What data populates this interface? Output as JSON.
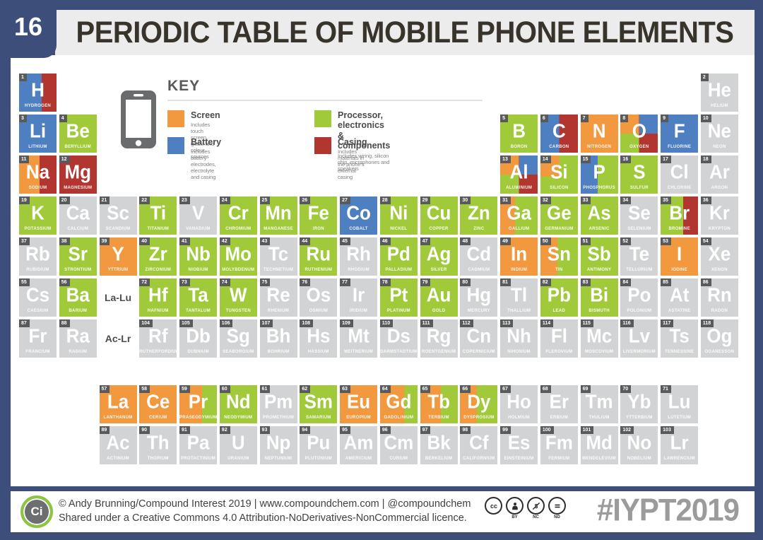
{
  "page": {
    "number": "16",
    "title": "PERIODIC TABLE OF MOBILE PHONE ELEMENTS"
  },
  "key": {
    "heading": "KEY",
    "items": [
      {
        "label": "Screen",
        "caption": "Includes touch screen, glass, and colour sources",
        "category": "screen"
      },
      {
        "label": "Battery",
        "caption": "Includes battery electrodes, electrolyte and casing",
        "category": "battery"
      },
      {
        "label": "Processor, electronics & components",
        "caption": "Includes wiring, silicon chip, microphones and speakers",
        "category": "processor"
      },
      {
        "label": "Casing",
        "caption": "Includes materials in the phone's external casing",
        "category": "casing"
      }
    ]
  },
  "palette": {
    "screen": "#F2983E",
    "battery": "#4D7FC1",
    "processor": "#A1CA3A",
    "casing": "#B2362F",
    "unused": "#D2D3D4",
    "frame": "#3E4E7B",
    "number_box": "#595A5C",
    "title_text": "#38342B"
  },
  "placeholders": [
    {
      "label": "La-Lu",
      "row": 6,
      "col": 3
    },
    {
      "label": "Ac-Lr",
      "row": 7,
      "col": 3
    }
  ],
  "elements": [
    [
      1,
      "H",
      "HYDROGEN",
      1,
      1,
      "split:battery,casing,60"
    ],
    [
      2,
      "He",
      "HELIUM",
      1,
      18,
      "unused"
    ],
    [
      3,
      "Li",
      "LITHIUM",
      2,
      1,
      "battery"
    ],
    [
      4,
      "Be",
      "BERYLLIUM",
      2,
      2,
      "processor"
    ],
    [
      5,
      "B",
      "BORON",
      2,
      13,
      "processor"
    ],
    [
      6,
      "C",
      "CARBON",
      2,
      14,
      "split:battery,casing,50"
    ],
    [
      7,
      "N",
      "NITROGEN",
      2,
      15,
      "screen"
    ],
    [
      8,
      "O",
      "OXYGEN",
      2,
      16,
      "quad"
    ],
    [
      9,
      "F",
      "FLUORINE",
      2,
      17,
      "battery"
    ],
    [
      10,
      "Ne",
      "NEON",
      2,
      18,
      "unused"
    ],
    [
      11,
      "Na",
      "SODIUM",
      3,
      1,
      "split:screen,casing,55"
    ],
    [
      12,
      "Mg",
      "MAGNESIUM",
      3,
      2,
      "casing"
    ],
    [
      13,
      "Al",
      "ALUMINIUM",
      3,
      13,
      "quad"
    ],
    [
      14,
      "Si",
      "SILICON",
      3,
      14,
      "tl:screen,processor"
    ],
    [
      15,
      "P",
      "PHOSPHORUS",
      3,
      15,
      "split:battery,processor,45"
    ],
    [
      16,
      "S",
      "SULFUR",
      3,
      16,
      "processor"
    ],
    [
      17,
      "Cl",
      "CHLORINE",
      3,
      17,
      "unused"
    ],
    [
      18,
      "Ar",
      "ARGON",
      3,
      18,
      "unused"
    ],
    [
      19,
      "K",
      "POTASSIUM",
      4,
      1,
      "processor"
    ],
    [
      20,
      "Ca",
      "CALCIUM",
      4,
      2,
      "unused"
    ],
    [
      21,
      "Sc",
      "SCANDIUM",
      4,
      3,
      "unused"
    ],
    [
      22,
      "Ti",
      "TITANIUM",
      4,
      4,
      "processor"
    ],
    [
      23,
      "V",
      "VANADIUM",
      4,
      5,
      "unused"
    ],
    [
      24,
      "Cr",
      "CHROMIUM",
      4,
      6,
      "processor"
    ],
    [
      25,
      "Mn",
      "MANGANESE",
      4,
      7,
      "processor"
    ],
    [
      26,
      "Fe",
      "IRON",
      4,
      8,
      "processor"
    ],
    [
      27,
      "Co",
      "COBALT",
      4,
      9,
      "battery"
    ],
    [
      28,
      "Ni",
      "NICKEL",
      4,
      10,
      "processor"
    ],
    [
      29,
      "Cu",
      "COPPER",
      4,
      11,
      "processor"
    ],
    [
      30,
      "Zn",
      "ZINC",
      4,
      12,
      "processor"
    ],
    [
      31,
      "Ga",
      "GALLIUM",
      4,
      13,
      "split:screen,processor,40"
    ],
    [
      32,
      "Ge",
      "GERMANIUM",
      4,
      14,
      "processor"
    ],
    [
      33,
      "As",
      "ARSENIC",
      4,
      15,
      "processor"
    ],
    [
      34,
      "Se",
      "SELENIUM",
      4,
      16,
      "unused"
    ],
    [
      35,
      "Br",
      "BROMINE",
      4,
      17,
      "split:processor,casing,60"
    ],
    [
      36,
      "Kr",
      "KRYPTON",
      4,
      18,
      "unused"
    ],
    [
      37,
      "Rb",
      "RUBIDIUM",
      5,
      1,
      "unused"
    ],
    [
      38,
      "Sr",
      "STRONTIUM",
      5,
      2,
      "processor"
    ],
    [
      39,
      "Y",
      "YTTRIUM",
      5,
      3,
      "screen"
    ],
    [
      40,
      "Zr",
      "ZIRCONIUM",
      5,
      4,
      "processor"
    ],
    [
      41,
      "Nb",
      "NIOBIUM",
      5,
      5,
      "processor"
    ],
    [
      42,
      "Mo",
      "MOLYBDENUM",
      5,
      6,
      "processor"
    ],
    [
      43,
      "Tc",
      "TECHNETIUM",
      5,
      7,
      "unused"
    ],
    [
      44,
      "Ru",
      "RUTHENIUM",
      5,
      8,
      "processor"
    ],
    [
      45,
      "Rh",
      "RHODIUM",
      5,
      9,
      "unused"
    ],
    [
      46,
      "Pd",
      "PALLADIUM",
      5,
      10,
      "processor"
    ],
    [
      47,
      "Ag",
      "SILVER",
      5,
      11,
      "processor"
    ],
    [
      48,
      "Cd",
      "CADMIUM",
      5,
      12,
      "unused"
    ],
    [
      49,
      "In",
      "INDIUM",
      5,
      13,
      "screen"
    ],
    [
      50,
      "Sn",
      "TIN",
      5,
      14,
      "split:screen,processor,45"
    ],
    [
      51,
      "Sb",
      "ANTIMONY",
      5,
      15,
      "processor"
    ],
    [
      52,
      "Te",
      "TELLURIUM",
      5,
      16,
      "unused"
    ],
    [
      53,
      "I",
      "IODINE",
      5,
      17,
      "screen"
    ],
    [
      54,
      "Xe",
      "XENON",
      5,
      18,
      "unused"
    ],
    [
      55,
      "Cs",
      "CAESIUM",
      6,
      1,
      "unused"
    ],
    [
      56,
      "Ba",
      "BARIUM",
      6,
      2,
      "processor"
    ],
    [
      72,
      "Hf",
      "HAFNIUM",
      6,
      4,
      "processor"
    ],
    [
      73,
      "Ta",
      "TANTALUM",
      6,
      5,
      "processor"
    ],
    [
      74,
      "W",
      "TUNGSTEN",
      6,
      6,
      "processor"
    ],
    [
      75,
      "Re",
      "RHENIUM",
      6,
      7,
      "unused"
    ],
    [
      76,
      "Os",
      "OSMIUM",
      6,
      8,
      "unused"
    ],
    [
      77,
      "Ir",
      "IRIDIUM",
      6,
      9,
      "unused"
    ],
    [
      78,
      "Pt",
      "PLATINUM",
      6,
      10,
      "processor"
    ],
    [
      79,
      "Au",
      "GOLD",
      6,
      11,
      "processor"
    ],
    [
      80,
      "Hg",
      "MERCURY",
      6,
      12,
      "unused"
    ],
    [
      81,
      "Tl",
      "THALLIUM",
      6,
      13,
      "unused"
    ],
    [
      82,
      "Pb",
      "LEAD",
      6,
      14,
      "processor"
    ],
    [
      83,
      "Bi",
      "BISMUTH",
      6,
      15,
      "processor"
    ],
    [
      84,
      "Po",
      "POLONIUM",
      6,
      16,
      "unused"
    ],
    [
      85,
      "At",
      "ASTATINE",
      6,
      17,
      "unused"
    ],
    [
      86,
      "Rn",
      "RADON",
      6,
      18,
      "unused"
    ],
    [
      87,
      "Fr",
      "FRANCIUM",
      7,
      1,
      "unused"
    ],
    [
      88,
      "Ra",
      "RADIUM",
      7,
      2,
      "unused"
    ],
    [
      104,
      "Rf",
      "RUTHERFORDIUM",
      7,
      4,
      "unused"
    ],
    [
      105,
      "Db",
      "DUBNIUM",
      7,
      5,
      "unused"
    ],
    [
      106,
      "Sg",
      "SEABORGIUM",
      7,
      6,
      "unused"
    ],
    [
      107,
      "Bh",
      "BOHRIUM",
      7,
      7,
      "unused"
    ],
    [
      108,
      "Hs",
      "HASSIUM",
      7,
      8,
      "unused"
    ],
    [
      109,
      "Mt",
      "MEITNERIUM",
      7,
      9,
      "unused"
    ],
    [
      110,
      "Ds",
      "DARMSTADTIUM",
      7,
      10,
      "unused"
    ],
    [
      111,
      "Rg",
      "ROENTGENIUM",
      7,
      11,
      "unused"
    ],
    [
      112,
      "Cn",
      "COPERNICIUM",
      7,
      12,
      "unused"
    ],
    [
      113,
      "Nh",
      "NIHONIUM",
      7,
      13,
      "unused"
    ],
    [
      114,
      "Fl",
      "FLEROVIUM",
      7,
      14,
      "unused"
    ],
    [
      115,
      "Mc",
      "MOSCOVIUM",
      7,
      15,
      "unused"
    ],
    [
      116,
      "Lv",
      "LIVERMORIUM",
      7,
      16,
      "unused"
    ],
    [
      117,
      "Ts",
      "TENNESSINE",
      7,
      17,
      "unused"
    ],
    [
      118,
      "Og",
      "OGANESSON",
      7,
      18,
      "unused"
    ],
    [
      57,
      "La",
      "LANTHANUM",
      8,
      3,
      "screen"
    ],
    [
      58,
      "Ce",
      "CERIUM",
      8,
      4,
      "screen"
    ],
    [
      59,
      "Pr",
      "PRASEODYMIUM",
      8,
      5,
      "split:screen,processor,60"
    ],
    [
      60,
      "Nd",
      "NEODYMIUM",
      8,
      6,
      "processor"
    ],
    [
      61,
      "Pm",
      "PROMETHIUM",
      8,
      7,
      "unused"
    ],
    [
      62,
      "Sm",
      "SAMARIUM",
      8,
      8,
      "processor"
    ],
    [
      63,
      "Eu",
      "EUROPIUM",
      8,
      9,
      "screen"
    ],
    [
      64,
      "Gd",
      "GADOLINIUM",
      8,
      10,
      "split:screen,processor,65"
    ],
    [
      65,
      "Tb",
      "TERBIUM",
      8,
      11,
      "split:screen,processor,55"
    ],
    [
      66,
      "Dy",
      "DYSPROSIUM",
      8,
      12,
      "split:screen,processor,45"
    ],
    [
      67,
      "Ho",
      "HOLMIUM",
      8,
      13,
      "unused"
    ],
    [
      68,
      "Er",
      "ERBIUM",
      8,
      14,
      "unused"
    ],
    [
      69,
      "Tm",
      "THULIUM",
      8,
      15,
      "unused"
    ],
    [
      70,
      "Yb",
      "YTTERBIUM",
      8,
      16,
      "unused"
    ],
    [
      71,
      "Lu",
      "LUTETIUM",
      8,
      17,
      "unused"
    ],
    [
      89,
      "Ac",
      "ACTINIUM",
      9,
      3,
      "unused"
    ],
    [
      90,
      "Th",
      "THORIUM",
      9,
      4,
      "unused"
    ],
    [
      91,
      "Pa",
      "PROTACTINIUM",
      9,
      5,
      "unused"
    ],
    [
      92,
      "U",
      "URANIUM",
      9,
      6,
      "unused"
    ],
    [
      93,
      "Np",
      "NEPTUNIUM",
      9,
      7,
      "unused"
    ],
    [
      94,
      "Pu",
      "PLUTONIUM",
      9,
      8,
      "unused"
    ],
    [
      95,
      "Am",
      "AMERICIUM",
      9,
      9,
      "unused"
    ],
    [
      96,
      "Cm",
      "CURIUM",
      9,
      10,
      "unused"
    ],
    [
      97,
      "Bk",
      "BERKELIUM",
      9,
      11,
      "unused"
    ],
    [
      98,
      "Cf",
      "CALIFORNIUM",
      9,
      12,
      "unused"
    ],
    [
      99,
      "Es",
      "EINSTEINIUM",
      9,
      13,
      "unused"
    ],
    [
      100,
      "Fm",
      "FERMIUM",
      9,
      14,
      "unused"
    ],
    [
      101,
      "Md",
      "MENDELEVIUM",
      9,
      15,
      "unused"
    ],
    [
      102,
      "No",
      "NOBELIUM",
      9,
      16,
      "unused"
    ],
    [
      103,
      "Lr",
      "LAWRENCIUM",
      9,
      17,
      "unused"
    ]
  ],
  "footer": {
    "logo_text": "Ci",
    "credit_line1": "© Andy Brunning/Compound Interest 2019  |  www.compoundchem.com  |  @compoundchem",
    "credit_line2": "Shared under a Creative Commons 4.0 Attribution-NoDerivatives-NonCommercial licence.",
    "cc_labels": [
      "BY",
      "NC",
      "ND"
    ],
    "hashtag": "#IYPT2019"
  }
}
